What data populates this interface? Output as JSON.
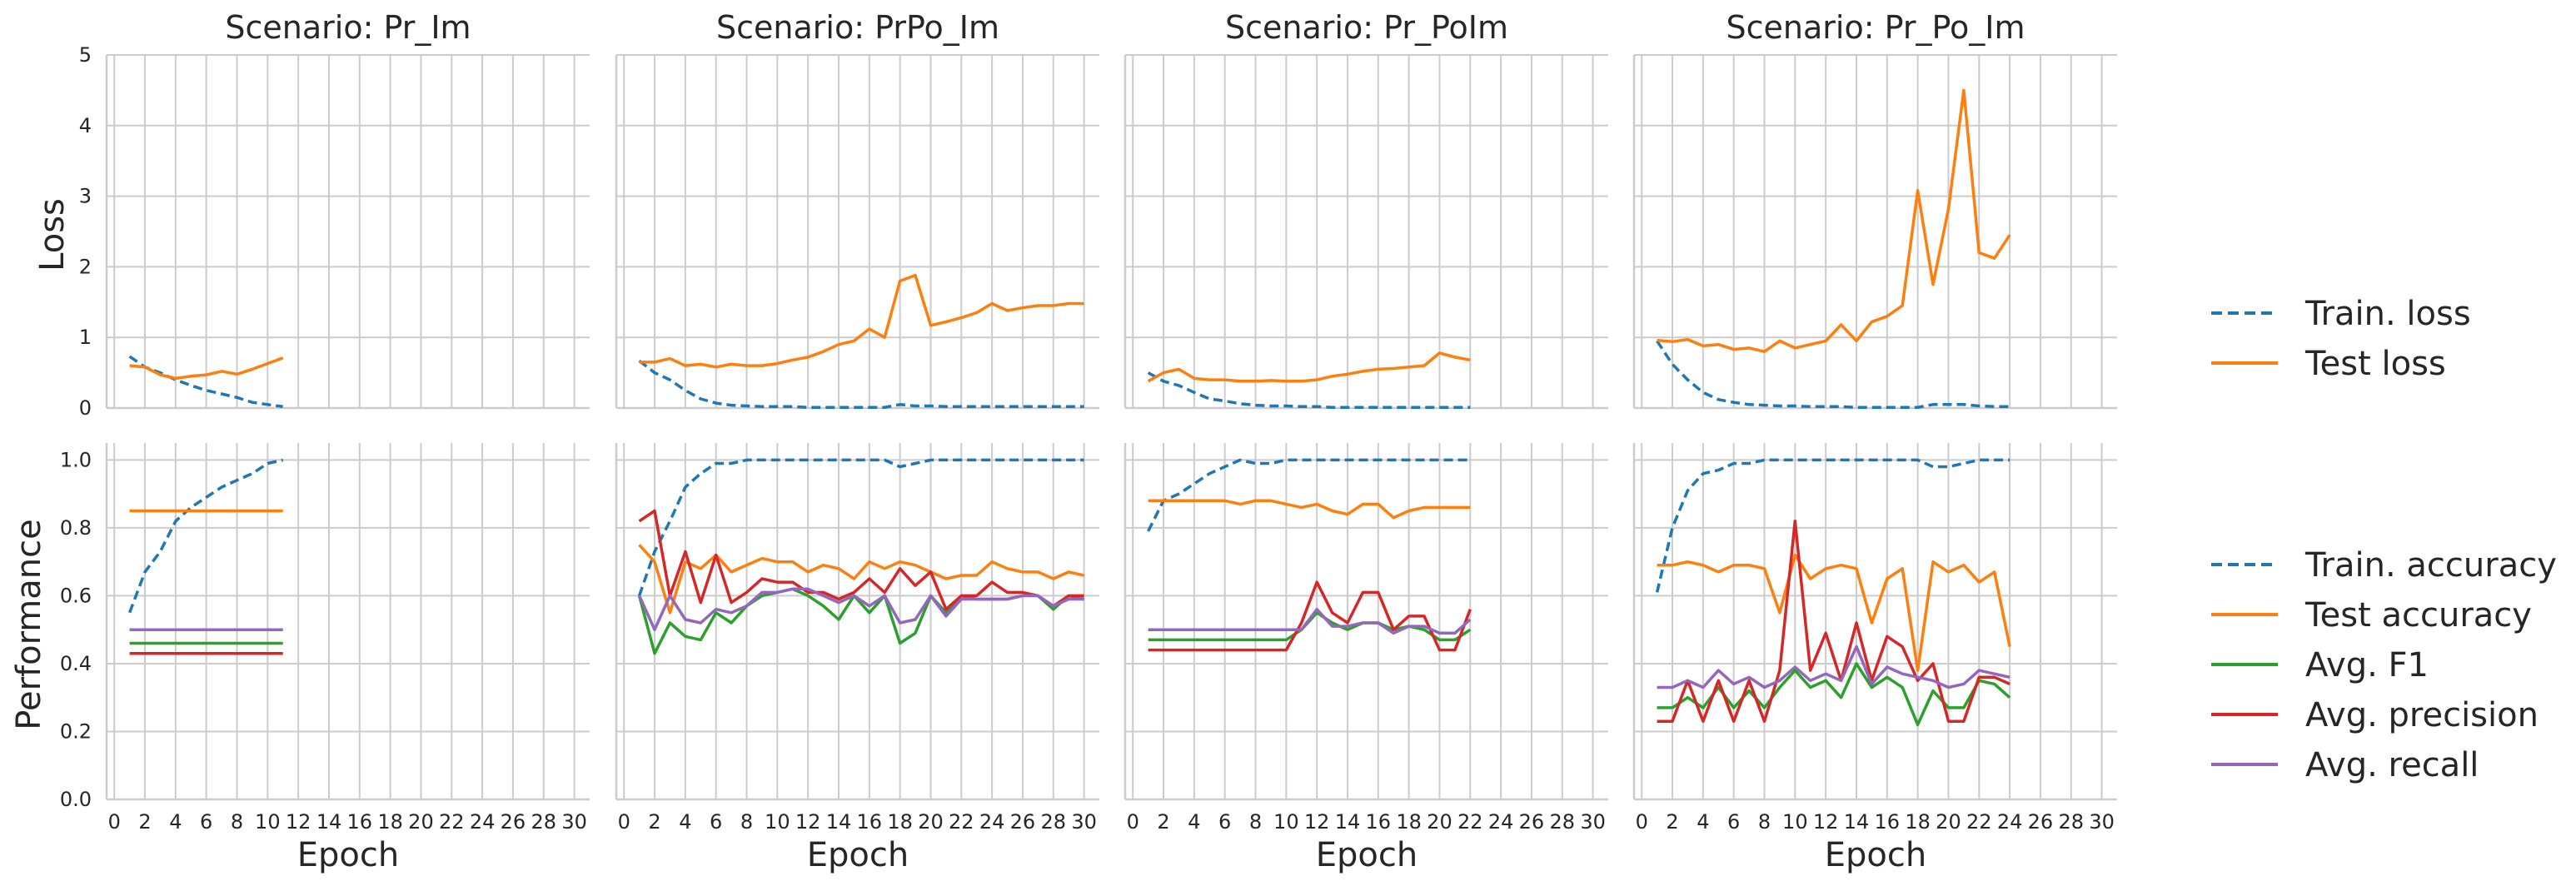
{
  "chart_data": {
    "type": "line",
    "row_labels": [
      "Loss",
      "Performance"
    ],
    "xlabel": "Epoch",
    "x_ticks": [
      "0",
      "2",
      "4",
      "6",
      "8",
      "10",
      "12",
      "14",
      "16",
      "18",
      "20",
      "22",
      "24",
      "26",
      "28",
      "30"
    ],
    "xlim": [
      -0.5,
      31
    ],
    "loss_ylim": [
      0,
      5
    ],
    "loss_yticks": [
      "0",
      "1",
      "2",
      "3",
      "4",
      "5"
    ],
    "perf_ylim": [
      0,
      1.05
    ],
    "perf_yticks": [
      "0.0",
      "0.2",
      "0.4",
      "0.6",
      "0.8",
      "1.0"
    ],
    "grid": true,
    "legend_loss": [
      {
        "name": "Train. loss",
        "color": "#1f77b4",
        "dash": true
      },
      {
        "name": "Test loss",
        "color": "#ff7f0e",
        "dash": false
      }
    ],
    "legend_perf": [
      {
        "name": "Train. accuracy",
        "color": "#1f77b4",
        "dash": true
      },
      {
        "name": "Test accuracy",
        "color": "#ff7f0e",
        "dash": false
      },
      {
        "name": "Avg. F1",
        "color": "#2ca02c",
        "dash": false
      },
      {
        "name": "Avg. precision",
        "color": "#d62728",
        "dash": false
      },
      {
        "name": "Avg. recall",
        "color": "#9467bd",
        "dash": false
      }
    ],
    "panels": [
      {
        "title": "Scenario: Pr_Im",
        "loss": {
          "train": [
            0.73,
            0.58,
            0.5,
            0.4,
            0.32,
            0.25,
            0.2,
            0.15,
            0.08,
            0.05,
            0.02
          ],
          "test": [
            0.6,
            0.58,
            0.47,
            0.42,
            0.45,
            0.47,
            0.52,
            0.48,
            0.55,
            0.63,
            0.71
          ]
        },
        "perf": {
          "train_acc": [
            0.55,
            0.67,
            0.73,
            0.82,
            0.86,
            0.89,
            0.92,
            0.94,
            0.96,
            0.99,
            1.0
          ],
          "test_acc": [
            0.85,
            0.85,
            0.85,
            0.85,
            0.85,
            0.85,
            0.85,
            0.85,
            0.85,
            0.85,
            0.85
          ],
          "f1": [
            0.46,
            0.46,
            0.46,
            0.46,
            0.46,
            0.46,
            0.46,
            0.46,
            0.46,
            0.46,
            0.46
          ],
          "precision": [
            0.43,
            0.43,
            0.43,
            0.43,
            0.43,
            0.43,
            0.43,
            0.43,
            0.43,
            0.43,
            0.43
          ],
          "recall": [
            0.5,
            0.5,
            0.5,
            0.5,
            0.5,
            0.5,
            0.5,
            0.5,
            0.5,
            0.5,
            0.5
          ]
        }
      },
      {
        "title": "Scenario: PrPo_Im",
        "loss": {
          "train": [
            0.67,
            0.5,
            0.4,
            0.25,
            0.13,
            0.07,
            0.04,
            0.03,
            0.02,
            0.02,
            0.02,
            0.01,
            0.01,
            0.01,
            0.01,
            0.01,
            0.01,
            0.05,
            0.03,
            0.03,
            0.02,
            0.02,
            0.02,
            0.02,
            0.02,
            0.02,
            0.02,
            0.02,
            0.02,
            0.02
          ],
          "test": [
            0.65,
            0.65,
            0.7,
            0.6,
            0.62,
            0.58,
            0.62,
            0.6,
            0.6,
            0.63,
            0.68,
            0.72,
            0.8,
            0.9,
            0.95,
            1.12,
            1.0,
            1.8,
            1.88,
            1.17,
            1.22,
            1.28,
            1.35,
            1.48,
            1.38,
            1.42,
            1.45,
            1.45,
            1.48,
            1.48
          ]
        },
        "perf": {
          "train_acc": [
            0.6,
            0.73,
            0.82,
            0.92,
            0.96,
            0.99,
            0.99,
            1.0,
            1.0,
            1.0,
            1.0,
            1.0,
            1.0,
            1.0,
            1.0,
            1.0,
            1.0,
            0.98,
            0.99,
            1.0,
            1.0,
            1.0,
            1.0,
            1.0,
            1.0,
            1.0,
            1.0,
            1.0,
            1.0,
            1.0
          ],
          "test_acc": [
            0.75,
            0.7,
            0.55,
            0.7,
            0.68,
            0.72,
            0.67,
            0.69,
            0.71,
            0.7,
            0.7,
            0.67,
            0.69,
            0.68,
            0.65,
            0.7,
            0.68,
            0.7,
            0.69,
            0.67,
            0.65,
            0.66,
            0.66,
            0.7,
            0.68,
            0.67,
            0.67,
            0.65,
            0.67,
            0.66
          ],
          "f1": [
            0.6,
            0.43,
            0.52,
            0.48,
            0.47,
            0.55,
            0.52,
            0.57,
            0.6,
            0.61,
            0.62,
            0.6,
            0.57,
            0.53,
            0.6,
            0.55,
            0.6,
            0.46,
            0.49,
            0.6,
            0.55,
            0.6,
            0.59,
            0.59,
            0.59,
            0.6,
            0.6,
            0.56,
            0.6,
            0.59
          ],
          "precision": [
            0.82,
            0.85,
            0.6,
            0.73,
            0.58,
            0.72,
            0.58,
            0.61,
            0.65,
            0.64,
            0.64,
            0.61,
            0.61,
            0.59,
            0.61,
            0.65,
            0.61,
            0.68,
            0.63,
            0.67,
            0.56,
            0.6,
            0.6,
            0.64,
            0.61,
            0.61,
            0.6,
            0.57,
            0.6,
            0.6
          ],
          "recall": [
            0.6,
            0.5,
            0.6,
            0.53,
            0.52,
            0.56,
            0.55,
            0.57,
            0.61,
            0.61,
            0.62,
            0.62,
            0.6,
            0.58,
            0.6,
            0.57,
            0.6,
            0.52,
            0.53,
            0.6,
            0.54,
            0.59,
            0.59,
            0.59,
            0.59,
            0.6,
            0.6,
            0.57,
            0.59,
            0.59
          ]
        }
      },
      {
        "title": "Scenario: Pr_PoIm",
        "loss": {
          "train": [
            0.5,
            0.38,
            0.32,
            0.22,
            0.13,
            0.1,
            0.06,
            0.04,
            0.03,
            0.03,
            0.02,
            0.02,
            0.01,
            0.01,
            0.01,
            0.01,
            0.01,
            0.01,
            0.01,
            0.01,
            0.01,
            0.01
          ],
          "test": [
            0.38,
            0.5,
            0.55,
            0.42,
            0.4,
            0.4,
            0.38,
            0.38,
            0.39,
            0.38,
            0.38,
            0.4,
            0.45,
            0.48,
            0.52,
            0.55,
            0.56,
            0.58,
            0.6,
            0.78,
            0.72,
            0.68
          ]
        },
        "perf": {
          "train_acc": [
            0.79,
            0.88,
            0.9,
            0.93,
            0.96,
            0.98,
            1.0,
            0.99,
            0.99,
            1.0,
            1.0,
            1.0,
            1.0,
            1.0,
            1.0,
            1.0,
            1.0,
            1.0,
            1.0,
            1.0,
            1.0,
            1.0
          ],
          "test_acc": [
            0.88,
            0.88,
            0.88,
            0.88,
            0.88,
            0.88,
            0.87,
            0.88,
            0.88,
            0.87,
            0.86,
            0.87,
            0.85,
            0.84,
            0.87,
            0.87,
            0.83,
            0.85,
            0.86,
            0.86,
            0.86,
            0.86
          ],
          "f1": [
            0.47,
            0.47,
            0.47,
            0.47,
            0.47,
            0.47,
            0.47,
            0.47,
            0.47,
            0.47,
            0.5,
            0.55,
            0.52,
            0.5,
            0.52,
            0.52,
            0.5,
            0.51,
            0.5,
            0.47,
            0.47,
            0.5
          ],
          "precision": [
            0.44,
            0.44,
            0.44,
            0.44,
            0.44,
            0.44,
            0.44,
            0.44,
            0.44,
            0.44,
            0.52,
            0.64,
            0.55,
            0.52,
            0.61,
            0.61,
            0.5,
            0.54,
            0.54,
            0.44,
            0.44,
            0.56
          ],
          "recall": [
            0.5,
            0.5,
            0.5,
            0.5,
            0.5,
            0.5,
            0.5,
            0.5,
            0.5,
            0.5,
            0.5,
            0.56,
            0.51,
            0.51,
            0.52,
            0.52,
            0.49,
            0.51,
            0.51,
            0.49,
            0.49,
            0.53
          ]
        }
      },
      {
        "title": "Scenario: Pr_Po_Im",
        "loss": {
          "train": [
            0.95,
            0.62,
            0.4,
            0.22,
            0.12,
            0.08,
            0.05,
            0.04,
            0.03,
            0.03,
            0.02,
            0.02,
            0.02,
            0.01,
            0.01,
            0.01,
            0.01,
            0.01,
            0.05,
            0.05,
            0.05,
            0.03,
            0.02,
            0.02
          ],
          "test": [
            0.96,
            0.94,
            0.97,
            0.88,
            0.9,
            0.83,
            0.85,
            0.8,
            0.95,
            0.85,
            0.9,
            0.95,
            1.18,
            0.95,
            1.22,
            1.3,
            1.45,
            3.08,
            1.75,
            2.82,
            4.5,
            2.2,
            2.12,
            2.45
          ]
        },
        "perf": {
          "train_acc": [
            0.61,
            0.8,
            0.91,
            0.96,
            0.97,
            0.99,
            0.99,
            1.0,
            1.0,
            1.0,
            1.0,
            1.0,
            1.0,
            1.0,
            1.0,
            1.0,
            1.0,
            1.0,
            0.98,
            0.98,
            0.99,
            1.0,
            1.0,
            1.0
          ],
          "test_acc": [
            0.69,
            0.69,
            0.7,
            0.69,
            0.67,
            0.69,
            0.69,
            0.68,
            0.55,
            0.72,
            0.65,
            0.68,
            0.69,
            0.68,
            0.52,
            0.65,
            0.68,
            0.38,
            0.7,
            0.67,
            0.69,
            0.64,
            0.67,
            0.45
          ],
          "f1": [
            0.27,
            0.27,
            0.3,
            0.27,
            0.33,
            0.27,
            0.32,
            0.27,
            0.33,
            0.38,
            0.33,
            0.35,
            0.3,
            0.4,
            0.33,
            0.36,
            0.33,
            0.22,
            0.32,
            0.27,
            0.27,
            0.35,
            0.34,
            0.3
          ],
          "precision": [
            0.23,
            0.23,
            0.35,
            0.23,
            0.35,
            0.23,
            0.35,
            0.23,
            0.38,
            0.82,
            0.38,
            0.49,
            0.35,
            0.52,
            0.35,
            0.48,
            0.45,
            0.35,
            0.4,
            0.23,
            0.23,
            0.36,
            0.36,
            0.34
          ],
          "recall": [
            0.33,
            0.33,
            0.35,
            0.33,
            0.38,
            0.34,
            0.36,
            0.33,
            0.35,
            0.39,
            0.35,
            0.37,
            0.35,
            0.45,
            0.34,
            0.39,
            0.37,
            0.36,
            0.35,
            0.33,
            0.34,
            0.38,
            0.37,
            0.36
          ]
        }
      }
    ]
  }
}
